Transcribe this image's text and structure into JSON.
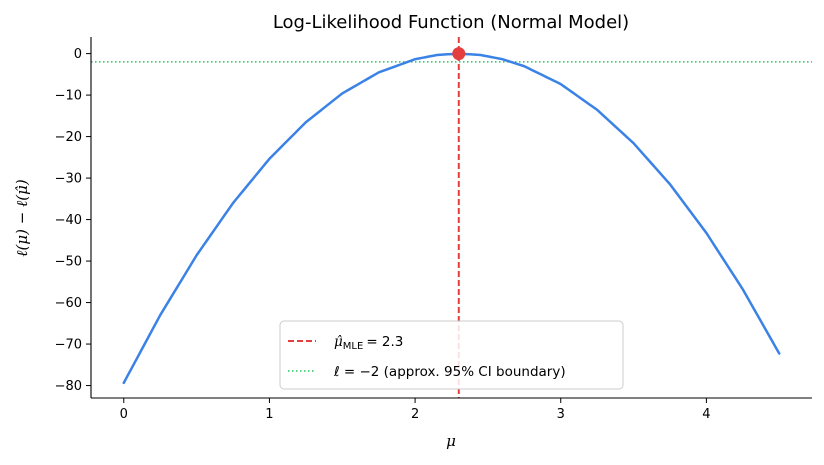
{
  "chart_data": {
    "type": "line",
    "title": "Log-Likelihood Function (Normal Model)",
    "xlabel": "μ",
    "ylabel": "ℓ(μ) − ℓ(μ̂)",
    "xlim": [
      -0.225,
      4.725
    ],
    "ylim": [
      -83,
      4
    ],
    "xticks": [
      0,
      1,
      2,
      3,
      4
    ],
    "yticks": [
      0,
      -10,
      -20,
      -30,
      -40,
      -50,
      -60,
      -70,
      -80
    ],
    "grid": false,
    "legend_position": "bottom-center",
    "series": [
      {
        "type": "line",
        "color": "#3b82e6",
        "x": [
          0,
          0.25,
          0.5,
          0.75,
          1.0,
          1.25,
          1.5,
          1.75,
          2.0,
          2.15,
          2.3,
          2.45,
          2.6,
          2.75,
          3.0,
          3.25,
          3.5,
          3.75,
          4.0,
          4.25,
          4.5
        ],
        "y": [
          -79.35,
          -63.04,
          -48.6,
          -36.02,
          -25.35,
          -16.54,
          -9.6,
          -4.54,
          -1.35,
          -0.34,
          0,
          -0.34,
          -1.35,
          -3.05,
          -7.35,
          -13.56,
          -21.6,
          -31.49,
          -43.23,
          -56.82,
          -72.27
        ]
      }
    ],
    "mle": {
      "x": 2.3,
      "y": 0,
      "color": "#e53e3e"
    },
    "ci_level": {
      "y": -2,
      "color": "#22c55e"
    },
    "legend": {
      "mle_label": "μ̂",
      "mle_subscript": "MLE",
      "mle_value": "= 2.3",
      "ci_label": "ℓ = −2 (approx. 95% CI boundary)"
    }
  }
}
